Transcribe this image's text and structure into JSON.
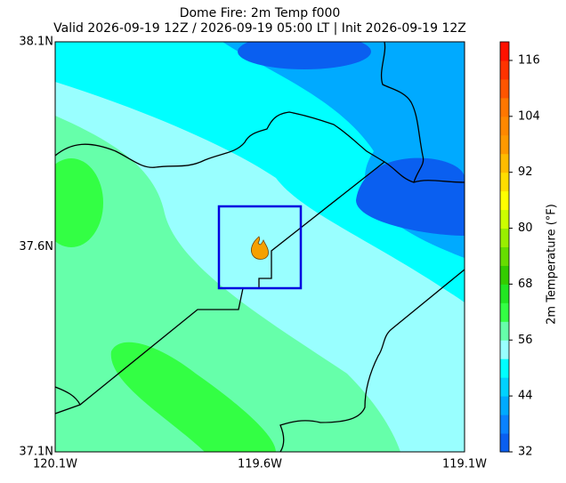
{
  "title": "Dome Fire: 2m Temp f000",
  "subtitle": "Valid 2026-09-19 12Z / 2026-09-19 05:00 LT | Init 2026-09-19 12Z",
  "x_labels": [
    "120.1W",
    "119.6W",
    "119.1W"
  ],
  "y_labels": [
    "38.1N",
    "37.6N",
    "37.1N"
  ],
  "colorbar": {
    "label": "2m Temperature (°F)",
    "ylim": [
      32,
      120
    ],
    "ticks": [
      32,
      44,
      56,
      68,
      80,
      92,
      104,
      116
    ],
    "colors": [
      "#0a5ff0",
      "#0a82ff",
      "#00aaff",
      "#00d2ff",
      "#00ffff",
      "#99ffff",
      "#66ffaa",
      "#33ff44",
      "#22e622",
      "#33cc00",
      "#66dd00",
      "#99ee00",
      "#ccff00",
      "#ffff00",
      "#ffdd00",
      "#ffbb00",
      "#ff9900",
      "#ff8800",
      "#ff7700",
      "#ff5500",
      "#ff3300",
      "#ff1100"
    ]
  }
}
